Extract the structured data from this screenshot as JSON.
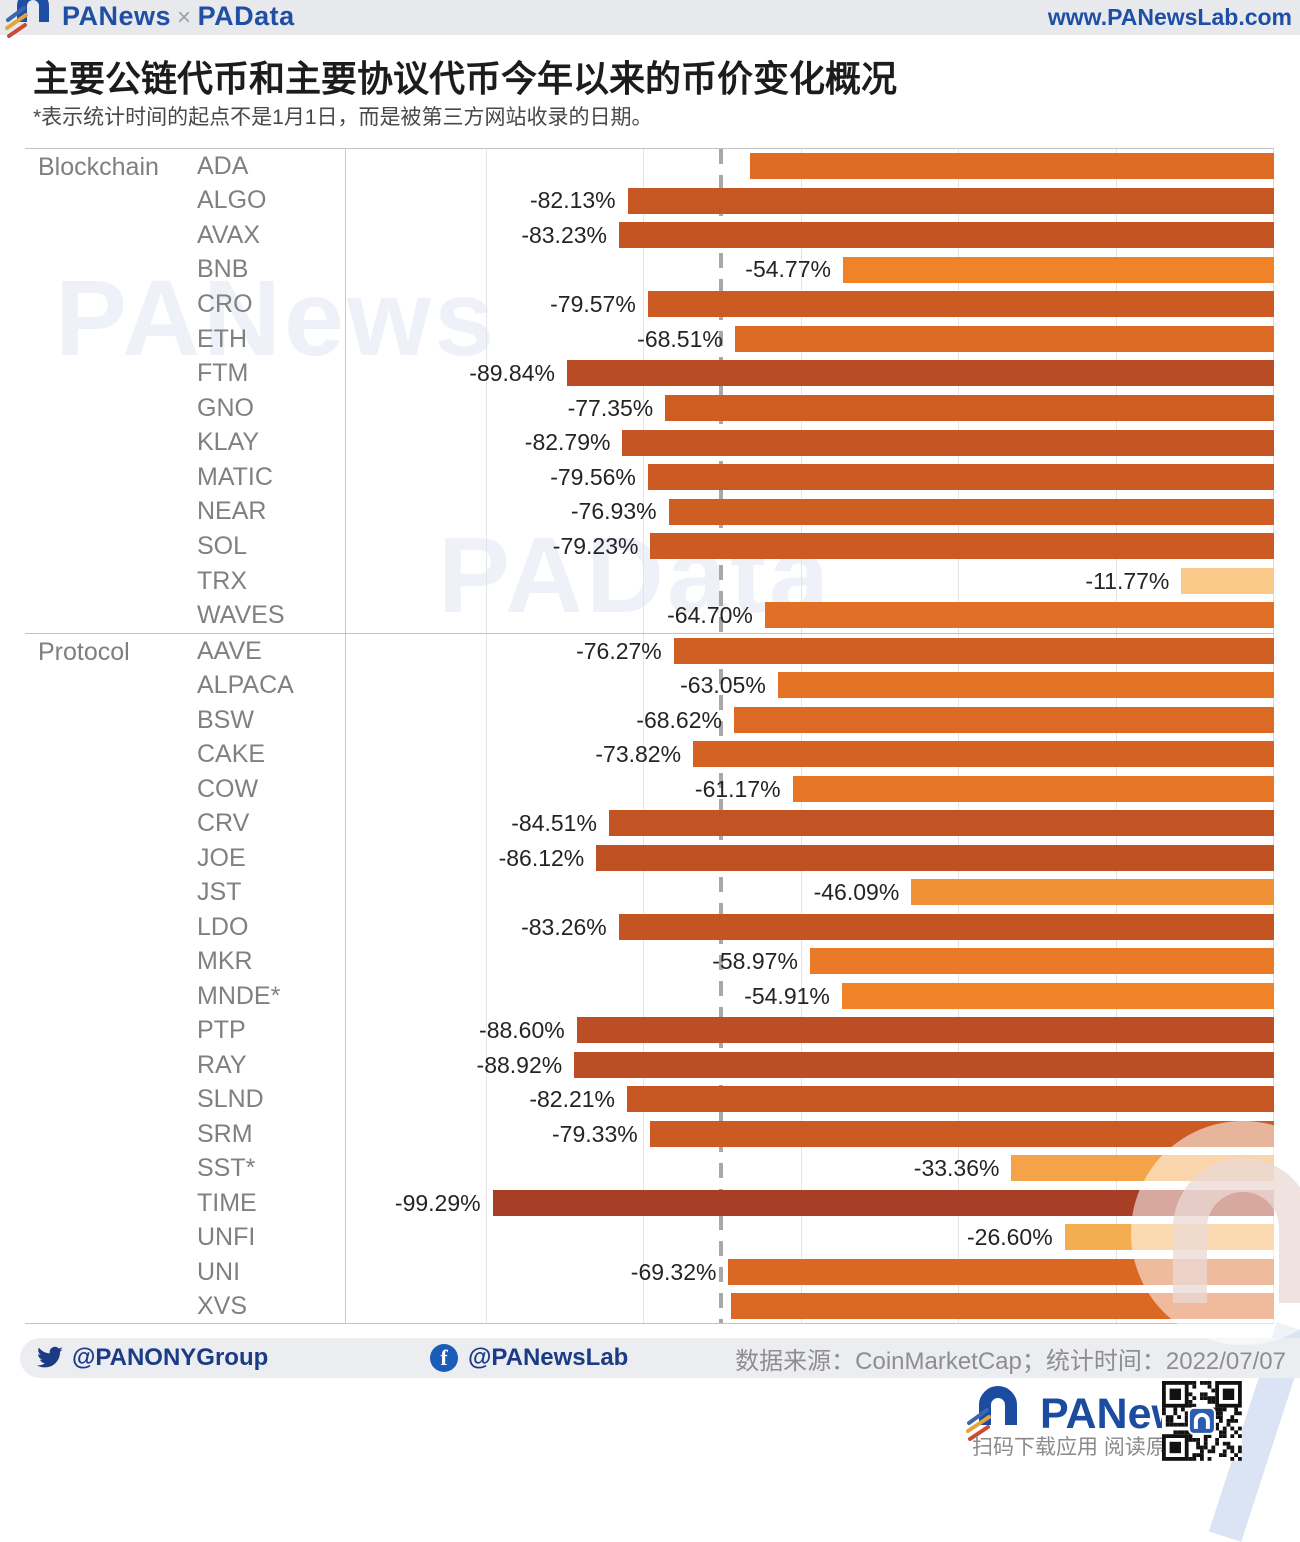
{
  "header": {
    "brand_left": "PANews",
    "brand_sep": "×",
    "brand_right": "PAData",
    "url": "www.PANewsLab.com"
  },
  "title": "主要公链代币和主要协议代币今年以来的币价变化概况",
  "subtitle": "*表示统计时间的起点不是1月1日，而是被第三方网站收录的日期。",
  "watermark_primary": "PANews",
  "watermark_secondary": "PAData",
  "chart_data": {
    "type": "bar",
    "orientation": "horizontal",
    "value_unit": "%",
    "title": "主要公链代币和主要协议代币今年以来的币价变化概况",
    "axis": {
      "min": -118,
      "max": 0,
      "gridline_step": 20,
      "zero_at_right": true
    },
    "mean_line_value": -70.3,
    "bar_color_ramp": [
      {
        "value": -100,
        "color": "#A63E26"
      },
      {
        "value": -80,
        "color": "#CA5A22"
      },
      {
        "value": -67,
        "color": "#DE6B24"
      },
      {
        "value": -55,
        "color": "#F08228"
      },
      {
        "value": -47,
        "color": "#F19036"
      },
      {
        "value": -27,
        "color": "#F5AC50"
      },
      {
        "value": -10,
        "color": "#FBCD92"
      }
    ],
    "groups": [
      {
        "category": "Blockchain",
        "items": [
          {
            "token": "ADA",
            "value": -66.6,
            "display": ""
          },
          {
            "token": "ALGO",
            "value": -82.13,
            "display": "-82.13%"
          },
          {
            "token": "AVAX",
            "value": -83.23,
            "display": "-83.23%"
          },
          {
            "token": "BNB",
            "value": -54.77,
            "display": "-54.77%"
          },
          {
            "token": "CRO",
            "value": -79.57,
            "display": "-79.57%"
          },
          {
            "token": "ETH",
            "value": -68.51,
            "display": "-68.51%"
          },
          {
            "token": "FTM",
            "value": -89.84,
            "display": "-89.84%"
          },
          {
            "token": "GNO",
            "value": -77.35,
            "display": "-77.35%"
          },
          {
            "token": "KLAY",
            "value": -82.79,
            "display": "-82.79%"
          },
          {
            "token": "MATIC",
            "value": -79.56,
            "display": "-79.56%"
          },
          {
            "token": "NEAR",
            "value": -76.93,
            "display": "-76.93%"
          },
          {
            "token": "SOL",
            "value": -79.23,
            "display": "-79.23%"
          },
          {
            "token": "TRX",
            "value": -11.77,
            "display": "-11.77%"
          },
          {
            "token": "WAVES",
            "value": -64.7,
            "display": "-64.70%"
          }
        ]
      },
      {
        "category": "Protocol",
        "items": [
          {
            "token": "AAVE",
            "value": -76.27,
            "display": "-76.27%"
          },
          {
            "token": "ALPACA",
            "value": -63.05,
            "display": "-63.05%"
          },
          {
            "token": "BSW",
            "value": -68.62,
            "display": "-68.62%"
          },
          {
            "token": "CAKE",
            "value": -73.82,
            "display": "-73.82%"
          },
          {
            "token": "COW",
            "value": -61.17,
            "display": "-61.17%"
          },
          {
            "token": "CRV",
            "value": -84.51,
            "display": "-84.51%"
          },
          {
            "token": "JOE",
            "value": -86.12,
            "display": "-86.12%"
          },
          {
            "token": "JST",
            "value": -46.09,
            "display": "-46.09%"
          },
          {
            "token": "LDO",
            "value": -83.26,
            "display": "-83.26%"
          },
          {
            "token": "MKR",
            "value": -58.97,
            "display": "-58.97%"
          },
          {
            "token": "MNDE*",
            "value": -54.91,
            "display": "-54.91%"
          },
          {
            "token": "PTP",
            "value": -88.6,
            "display": "-88.60%"
          },
          {
            "token": "RAY",
            "value": -88.92,
            "display": "-88.92%"
          },
          {
            "token": "SLND",
            "value": -82.21,
            "display": "-82.21%"
          },
          {
            "token": "SRM",
            "value": -79.33,
            "display": "-79.33%"
          },
          {
            "token": "SST*",
            "value": -33.36,
            "display": "-33.36%"
          },
          {
            "token": "TIME",
            "value": -99.29,
            "display": "-99.29%"
          },
          {
            "token": "UNFI",
            "value": -26.6,
            "display": "-26.60%"
          },
          {
            "token": "UNI",
            "value": -69.32,
            "display": "-69.32%"
          },
          {
            "token": "XVS",
            "value": -69.0,
            "display": ""
          }
        ]
      }
    ]
  },
  "footer": {
    "twitter_handle": "@PANONYGroup",
    "facebook_handle": "@PANewsLab",
    "source_line": "数据来源：CoinMarketCap；统计时间：2022/07/07"
  },
  "brand_footer": {
    "name": "PANews",
    "qr_caption": "扫码下载应用 阅读原文"
  }
}
